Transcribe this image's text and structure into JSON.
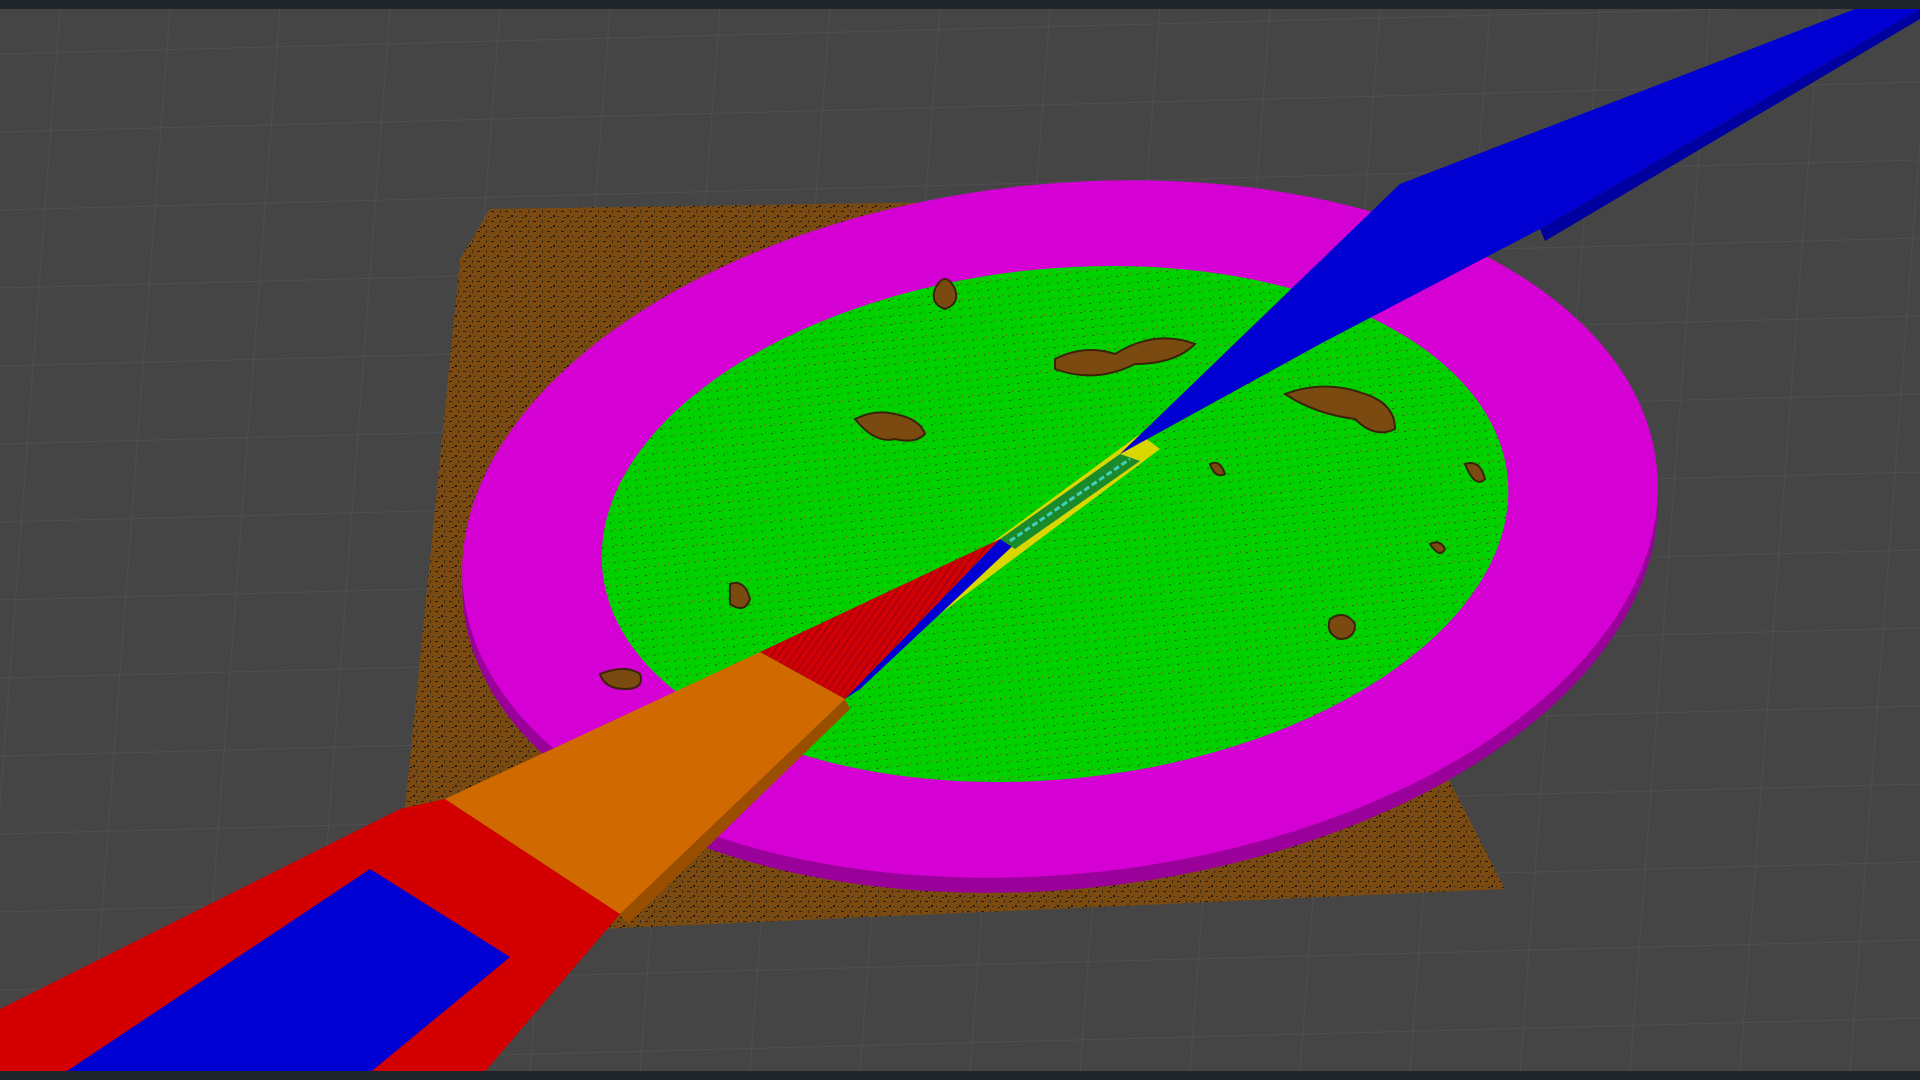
{
  "window": {
    "view": "3d-viewport"
  },
  "colors": {
    "background": "#454545",
    "grid_line": "#4f4f52",
    "terrain_base": "#7a4a10",
    "terrain_dark": "#2a1a08",
    "outer_ring": "#d400d4",
    "inner_area": "#00d200",
    "path_blue": "#0000d2",
    "path_red": "#d20000",
    "path_orange": "#d06a00",
    "path_yellow": "#d8d800",
    "trajectory_cyan": "#40d0c0"
  },
  "icons": {
    "grid": "grid-plane-icon"
  }
}
